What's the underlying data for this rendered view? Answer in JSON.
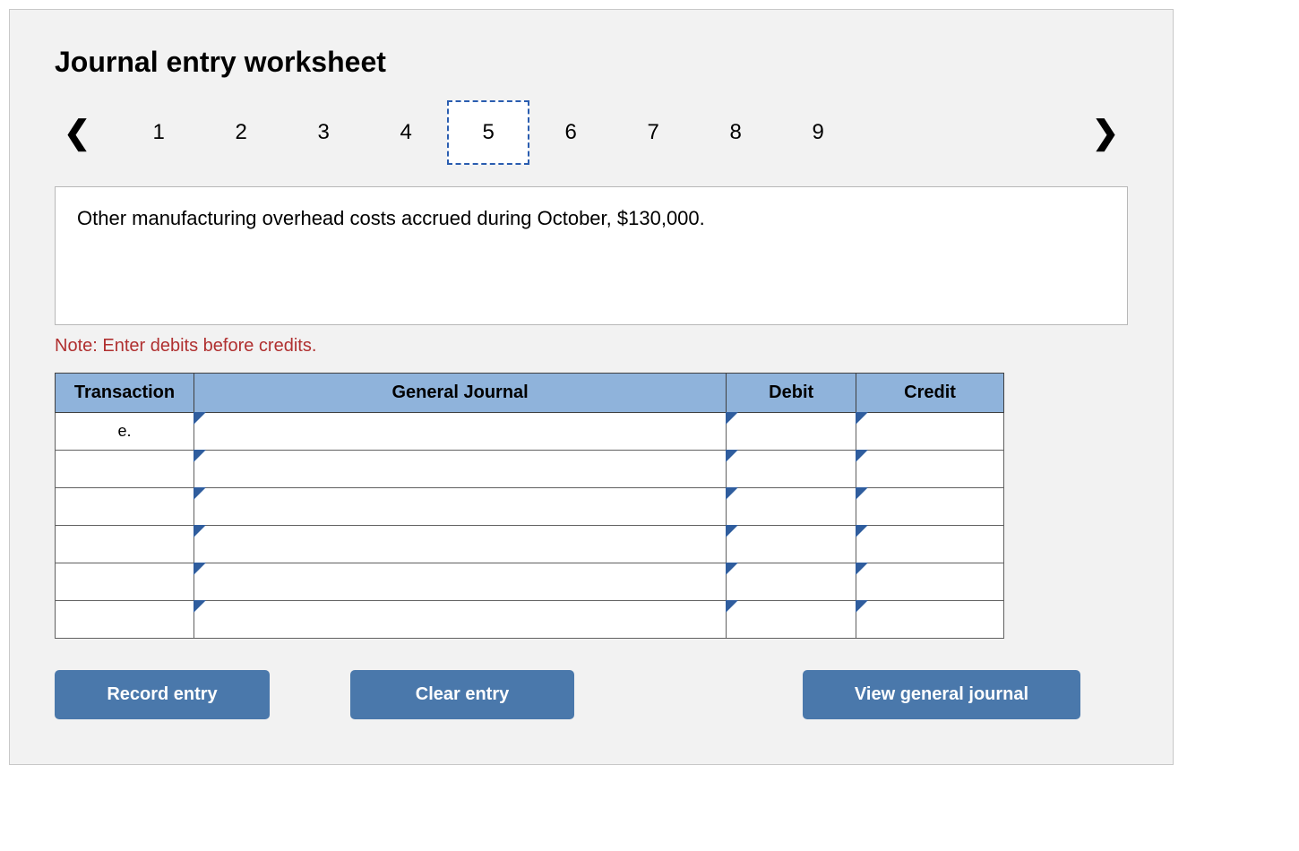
{
  "title": "Journal entry worksheet",
  "nav": {
    "prev_icon": "‹",
    "next_icon": "›",
    "steps": [
      "1",
      "2",
      "3",
      "4",
      "5",
      "6",
      "7",
      "8",
      "9"
    ],
    "active_index": 4
  },
  "prompt": "Other manufacturing overhead costs accrued during October, $130,000.",
  "note": "Note: Enter debits before credits.",
  "table": {
    "headers": {
      "transaction": "Transaction",
      "general_journal": "General Journal",
      "debit": "Debit",
      "credit": "Credit"
    },
    "rows": [
      {
        "transaction": "e.",
        "gj": "",
        "debit": "",
        "credit": ""
      },
      {
        "transaction": "",
        "gj": "",
        "debit": "",
        "credit": ""
      },
      {
        "transaction": "",
        "gj": "",
        "debit": "",
        "credit": ""
      },
      {
        "transaction": "",
        "gj": "",
        "debit": "",
        "credit": ""
      },
      {
        "transaction": "",
        "gj": "",
        "debit": "",
        "credit": ""
      },
      {
        "transaction": "",
        "gj": "",
        "debit": "",
        "credit": ""
      }
    ]
  },
  "buttons": {
    "record": "Record entry",
    "clear": "Clear entry",
    "view": "View general journal"
  },
  "colors": {
    "panel_bg": "#f2f2f2",
    "header_bg": "#8fb3db",
    "button_bg": "#4a78ab",
    "note_color": "#b03030",
    "active_border": "#2a5db0"
  }
}
